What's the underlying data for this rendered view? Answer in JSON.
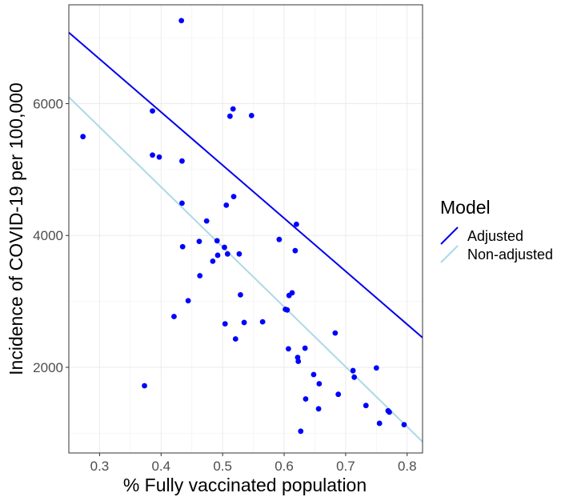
{
  "chart_data": {
    "type": "scatter",
    "title": "",
    "xlabel": "% Fully vaccinated population",
    "ylabel": "Incidence of COVID-19 per 100,000",
    "xlim": [
      0.25,
      0.825
    ],
    "ylim": [
      700,
      7500
    ],
    "x_ticks": [
      0.3,
      0.4,
      0.5,
      0.6,
      0.7,
      0.8
    ],
    "x_tick_labels": [
      "0.3",
      "0.4",
      "0.5",
      "0.6",
      "0.7",
      "0.8"
    ],
    "y_ticks": [
      2000,
      4000,
      6000
    ],
    "y_tick_labels": [
      "2000",
      "4000",
      "6000"
    ],
    "grid": true,
    "legend_position": "right",
    "legend_title": "Model",
    "point_color": "#0000ff",
    "points": [
      {
        "x": 0.273,
        "y": 5500
      },
      {
        "x": 0.373,
        "y": 1720
      },
      {
        "x": 0.386,
        "y": 5890
      },
      {
        "x": 0.386,
        "y": 5220
      },
      {
        "x": 0.397,
        "y": 5190
      },
      {
        "x": 0.421,
        "y": 2770
      },
      {
        "x": 0.433,
        "y": 7260
      },
      {
        "x": 0.434,
        "y": 5130
      },
      {
        "x": 0.434,
        "y": 4490
      },
      {
        "x": 0.435,
        "y": 3830
      },
      {
        "x": 0.444,
        "y": 3010
      },
      {
        "x": 0.462,
        "y": 3910
      },
      {
        "x": 0.463,
        "y": 3390
      },
      {
        "x": 0.474,
        "y": 4220
      },
      {
        "x": 0.484,
        "y": 3610
      },
      {
        "x": 0.491,
        "y": 3920
      },
      {
        "x": 0.492,
        "y": 3700
      },
      {
        "x": 0.503,
        "y": 3820
      },
      {
        "x": 0.504,
        "y": 2660
      },
      {
        "x": 0.506,
        "y": 4460
      },
      {
        "x": 0.508,
        "y": 3720
      },
      {
        "x": 0.512,
        "y": 5810
      },
      {
        "x": 0.517,
        "y": 5920
      },
      {
        "x": 0.518,
        "y": 4590
      },
      {
        "x": 0.521,
        "y": 2430
      },
      {
        "x": 0.527,
        "y": 3720
      },
      {
        "x": 0.529,
        "y": 3100
      },
      {
        "x": 0.535,
        "y": 2680
      },
      {
        "x": 0.547,
        "y": 5820
      },
      {
        "x": 0.565,
        "y": 2690
      },
      {
        "x": 0.592,
        "y": 3940
      },
      {
        "x": 0.602,
        "y": 2880
      },
      {
        "x": 0.605,
        "y": 2870
      },
      {
        "x": 0.607,
        "y": 2280
      },
      {
        "x": 0.608,
        "y": 3090
      },
      {
        "x": 0.613,
        "y": 3130
      },
      {
        "x": 0.618,
        "y": 3770
      },
      {
        "x": 0.62,
        "y": 4170
      },
      {
        "x": 0.622,
        "y": 2150
      },
      {
        "x": 0.623,
        "y": 2090
      },
      {
        "x": 0.627,
        "y": 1030
      },
      {
        "x": 0.634,
        "y": 2290
      },
      {
        "x": 0.635,
        "y": 1520
      },
      {
        "x": 0.648,
        "y": 1890
      },
      {
        "x": 0.656,
        "y": 1370
      },
      {
        "x": 0.657,
        "y": 1750
      },
      {
        "x": 0.683,
        "y": 2520
      },
      {
        "x": 0.688,
        "y": 1590
      },
      {
        "x": 0.712,
        "y": 1950
      },
      {
        "x": 0.714,
        "y": 1850
      },
      {
        "x": 0.733,
        "y": 1420
      },
      {
        "x": 0.75,
        "y": 1990
      },
      {
        "x": 0.755,
        "y": 1150
      },
      {
        "x": 0.769,
        "y": 1340
      },
      {
        "x": 0.771,
        "y": 1320
      },
      {
        "x": 0.795,
        "y": 1130
      }
    ],
    "series": [
      {
        "name": "Adjusted",
        "color": "#0000ee",
        "x": [
          0.25,
          0.825
        ],
        "y": [
          7080,
          2450
        ]
      },
      {
        "name": "Non-adjusted",
        "color": "#add8e6",
        "x": [
          0.25,
          0.825
        ],
        "y": [
          6100,
          870
        ]
      }
    ]
  }
}
